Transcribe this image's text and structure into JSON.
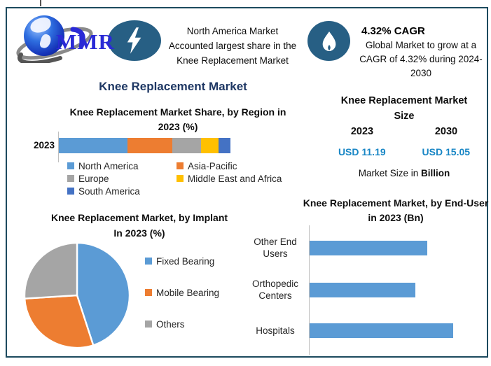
{
  "window": {
    "border_color": "#1C4A5E"
  },
  "header": {
    "logo_text": "MMR",
    "na_highlight": {
      "text": "North America Market Accounted largest share in the Knee Replacement Market",
      "lines": [
        "North America Market",
        "Accounted largest share in the",
        "Knee Replacement Market"
      ]
    },
    "cagr": {
      "heading": "4.32% CAGR",
      "text": "Global Market to grow at a CAGR of 4.32% during 2024-2030",
      "lines": [
        "Global Market to grow at a",
        "CAGR of 4.32% during 2024-",
        "2030"
      ]
    }
  },
  "main_title": "Knee Replacement Market",
  "colors": {
    "accent_navy": "#1F3864",
    "badge_navy": "#275F84",
    "value_blue": "#1886C5",
    "bar_blue": "#5B9BD5",
    "axis_gray": "#BFBFBF"
  },
  "chart_data": [
    {
      "id": "region_share",
      "type": "bar",
      "subtype": "stacked-horizontal-100",
      "title": "Knee Replacement Market Share, by Region in 2023 (%)",
      "title_lines": [
        "Knee Replacement Market Share, by Region in",
        "2023 (%)"
      ],
      "categories": [
        "2023"
      ],
      "series": [
        {
          "name": "North America",
          "value": 40,
          "color": "#5B9BD5"
        },
        {
          "name": "Asia-Pacific",
          "value": 26,
          "color": "#ED7D31"
        },
        {
          "name": "Europe",
          "value": 17,
          "color": "#A5A5A5"
        },
        {
          "name": "Middle East and Africa",
          "value": 10,
          "color": "#FFC000"
        },
        {
          "name": "South America",
          "value": 7,
          "color": "#4472C4"
        }
      ],
      "units": "%",
      "legend_position": "bottom",
      "values_estimated": true
    },
    {
      "id": "market_size",
      "type": "table",
      "title": "Knee Replacement Market Size",
      "title_lines": [
        "Knee Replacement Market",
        "Size"
      ],
      "columns": [
        "2023",
        "2030"
      ],
      "values": [
        "USD 11.19",
        "USD 15.05"
      ],
      "footnote_regular": "Market Size in ",
      "footnote_bold": "Billion",
      "value_color": "#1886C5"
    },
    {
      "id": "implant_pie",
      "type": "pie",
      "title": "Knee Replacement Market, by Implant In 2023 (%)",
      "title_lines": [
        "Knee Replacement Market, by Implant",
        "In 2023 (%)"
      ],
      "slices": [
        {
          "label": "Fixed Bearing",
          "value": 45,
          "color": "#5B9BD5"
        },
        {
          "label": "Mobile Bearing",
          "value": 29,
          "color": "#ED7D31"
        },
        {
          "label": "Others",
          "value": 26,
          "color": "#A5A5A5"
        }
      ],
      "units": "%",
      "legend_position": "right",
      "values_estimated": true
    },
    {
      "id": "enduser_bars",
      "type": "bar",
      "subtype": "horizontal",
      "title": "Knee Replacement Market, by End-User in 2023 (Bn)",
      "title_lines": [
        "Knee Replacement Market, by End-User",
        "in 2023 (Bn)"
      ],
      "categories": [
        "Other End Users",
        "Orthopedic Centers",
        "Hospitals"
      ],
      "category_lines": [
        [
          "Other End",
          "Users"
        ],
        [
          "Orthopedic",
          "Centers"
        ],
        [
          "Hospitals"
        ]
      ],
      "values": [
        3.6,
        3.25,
        4.4
      ],
      "bar_color": "#5B9BD5",
      "units": "Bn",
      "legend_position": "none",
      "values_estimated": true
    }
  ]
}
